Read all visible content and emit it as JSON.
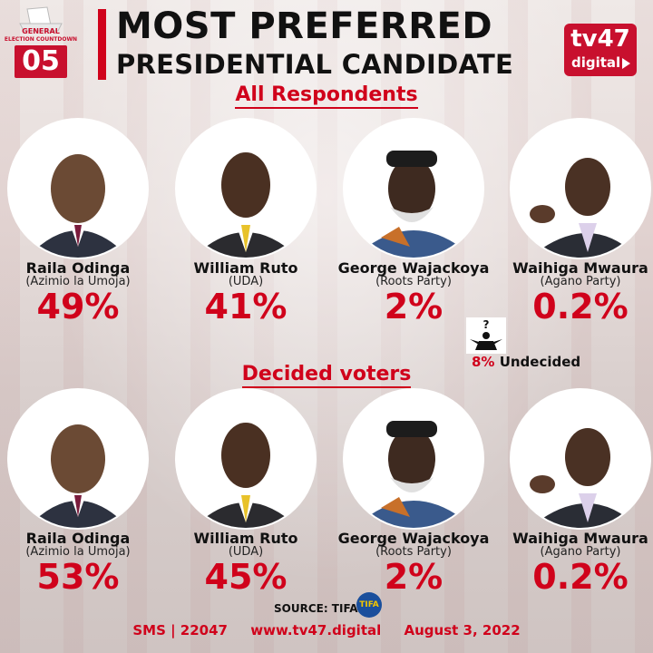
{
  "header": {
    "countdown_label_line1": "GENERAL",
    "countdown_label_line2": "ELECTION COUNTDOWN",
    "countdown_number": "05",
    "title_line1": "MOST PREFERRED",
    "title_line2": "PRESIDENTIAL CANDIDATE",
    "brand_main": "tv47",
    "brand_sub": "digital"
  },
  "sections": [
    {
      "title": "All Respondents",
      "candidates": [
        {
          "name": "Raila Odinga",
          "party": "(Azimio la Umoja)",
          "percent": "49%"
        },
        {
          "name": "William Ruto",
          "party": "(UDA)",
          "percent": "41%"
        },
        {
          "name": "George Wajackoya",
          "party": "(Roots Party)",
          "percent": "2%"
        },
        {
          "name": "Waihiga Mwaura",
          "party": "(Agano Party)",
          "percent": "0.2%"
        }
      ],
      "undecided": {
        "percent": "8%",
        "label": "Undecided"
      }
    },
    {
      "title": "Decided voters",
      "candidates": [
        {
          "name": "Raila Odinga",
          "party": "(Azimio la Umoja)",
          "percent": "53%"
        },
        {
          "name": "William Ruto",
          "party": "(UDA)",
          "percent": "45%"
        },
        {
          "name": "George Wajackoya",
          "party": "(Roots Party)",
          "percent": "2%"
        },
        {
          "name": "Waihiga Mwaura",
          "party": "(Agano Party)",
          "percent": "0.2%"
        }
      ]
    }
  ],
  "source": {
    "label": "SOURCE: TIFA",
    "logo_text": "TIFA"
  },
  "footer": {
    "sms": "SMS | 22047",
    "website": "www.tv47.digital",
    "date": "August 3, 2022"
  },
  "colors": {
    "accent": "#d0021b",
    "text": "#111111"
  },
  "icons": [
    "ballot-box-icon",
    "person-question-icon",
    "play-icon"
  ]
}
